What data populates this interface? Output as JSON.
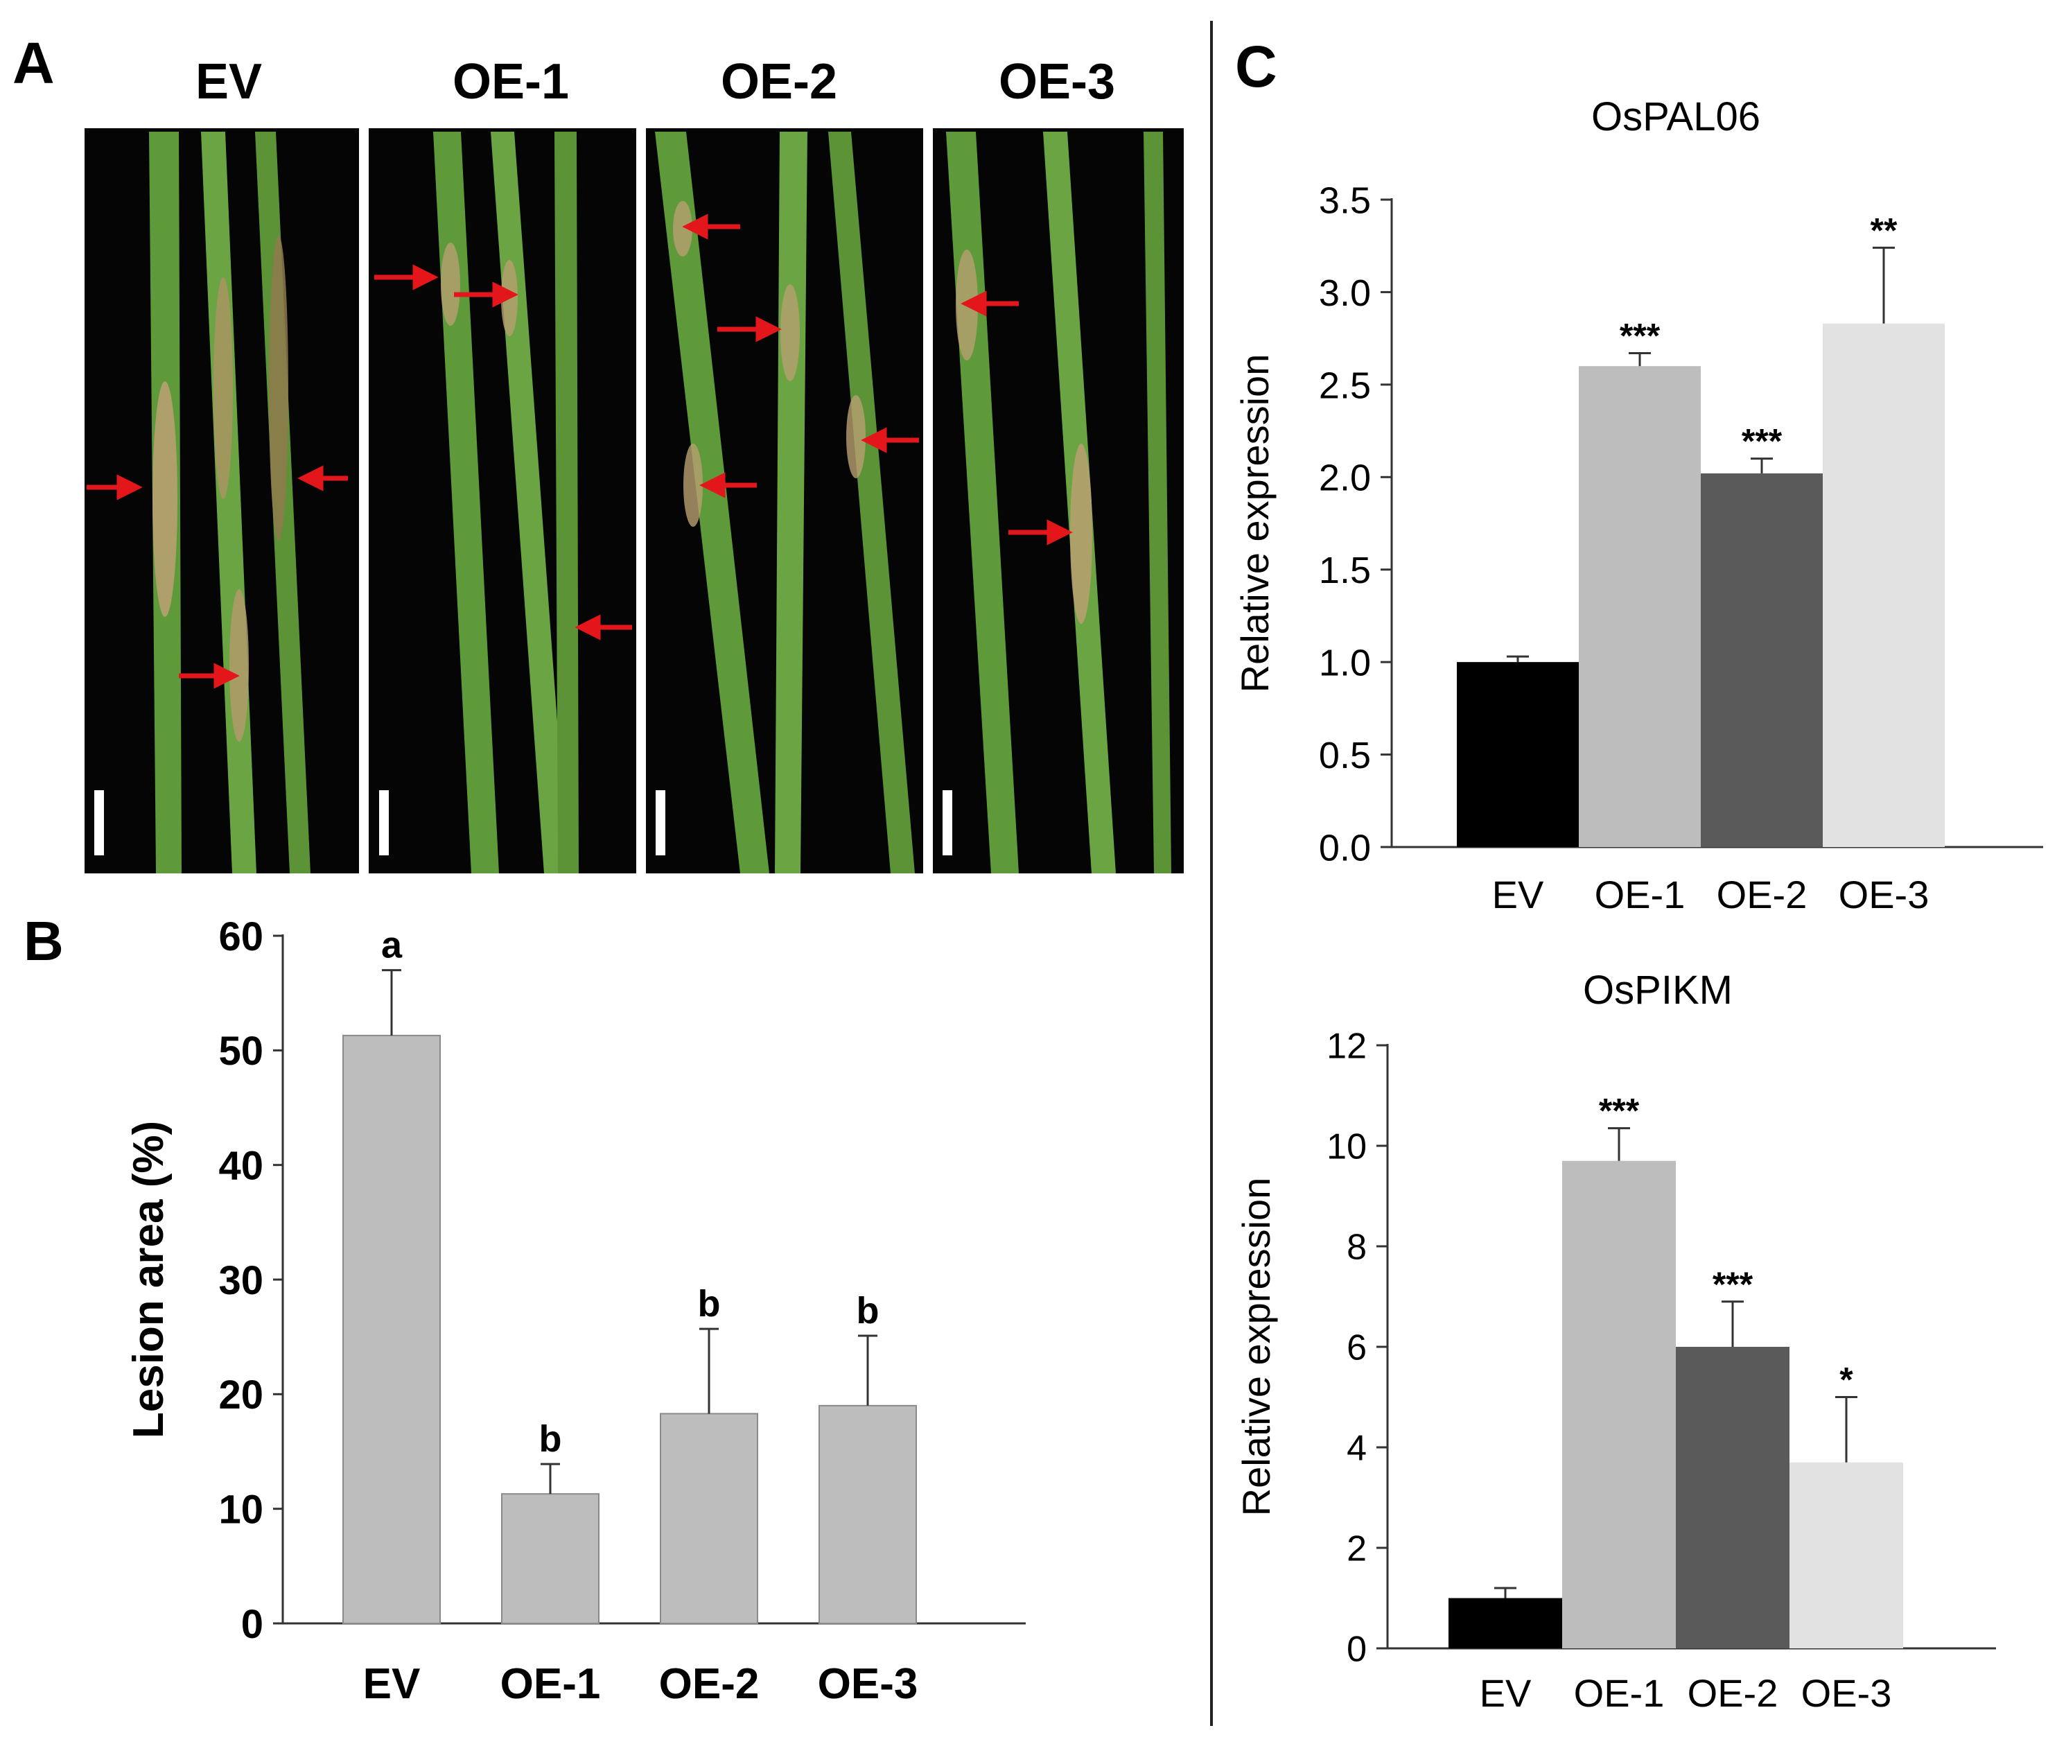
{
  "colors": {
    "photo_bg": "#050505",
    "leaf_green": "#5f9a3a",
    "leaf_dark": "#3f7a2a",
    "lesion": "#b8a070",
    "arrow": "#e3161b",
    "bar_gray_B": "#bdbdbd",
    "ev": "#000000",
    "oe1": "#bdbdbd",
    "oe2": "#5a5a5a",
    "oe3": "#e2e2e2"
  },
  "panel_a": {
    "label": "A",
    "columns": [
      "EV",
      "OE-1",
      "OE-2",
      "OE-3"
    ]
  },
  "chart_data": [
    {
      "panel": "B",
      "type": "bar",
      "categories": [
        "EV",
        "OE-1",
        "OE-2",
        "OE-3"
      ],
      "values": [
        51.3,
        11.3,
        18.3,
        19.0
      ],
      "errors": [
        5.7,
        2.6,
        7.4,
        6.1
      ],
      "annotations": [
        "a",
        "b",
        "b",
        "b"
      ],
      "ylabel": "Lesion area (%)",
      "ylim": [
        0,
        60
      ],
      "yticks": [
        "0",
        "10",
        "20",
        "30",
        "40",
        "50",
        "60"
      ]
    },
    {
      "panel": "C",
      "type": "bar",
      "title": "OsPAL06",
      "categories": [
        "EV",
        "OE-1",
        "OE-2",
        "OE-3"
      ],
      "values": [
        1.0,
        2.6,
        2.02,
        2.83
      ],
      "errors": [
        0.03,
        0.07,
        0.08,
        0.41
      ],
      "annotations": [
        "",
        "***",
        "***",
        "**"
      ],
      "ylabel": "Relative expression",
      "ylim": [
        0,
        3.5
      ],
      "yticks": [
        "0.0",
        "0.5",
        "1.0",
        "1.5",
        "2.0",
        "2.5",
        "3.0",
        "3.5"
      ]
    },
    {
      "panel": "C",
      "type": "bar",
      "title": "OsPIKM",
      "categories": [
        "EV",
        "OE-1",
        "OE-2",
        "OE-3"
      ],
      "values": [
        1.0,
        9.7,
        6.0,
        3.7
      ],
      "errors": [
        0.2,
        0.65,
        0.9,
        1.3
      ],
      "annotations": [
        "",
        "***",
        "***",
        "*"
      ],
      "ylabel": "Relative expression",
      "ylim": [
        0,
        12
      ],
      "yticks": [
        "0",
        "2",
        "4",
        "6",
        "8",
        "10",
        "12"
      ]
    }
  ],
  "panel_b": {
    "label": "B"
  },
  "panel_c": {
    "label": "C"
  }
}
